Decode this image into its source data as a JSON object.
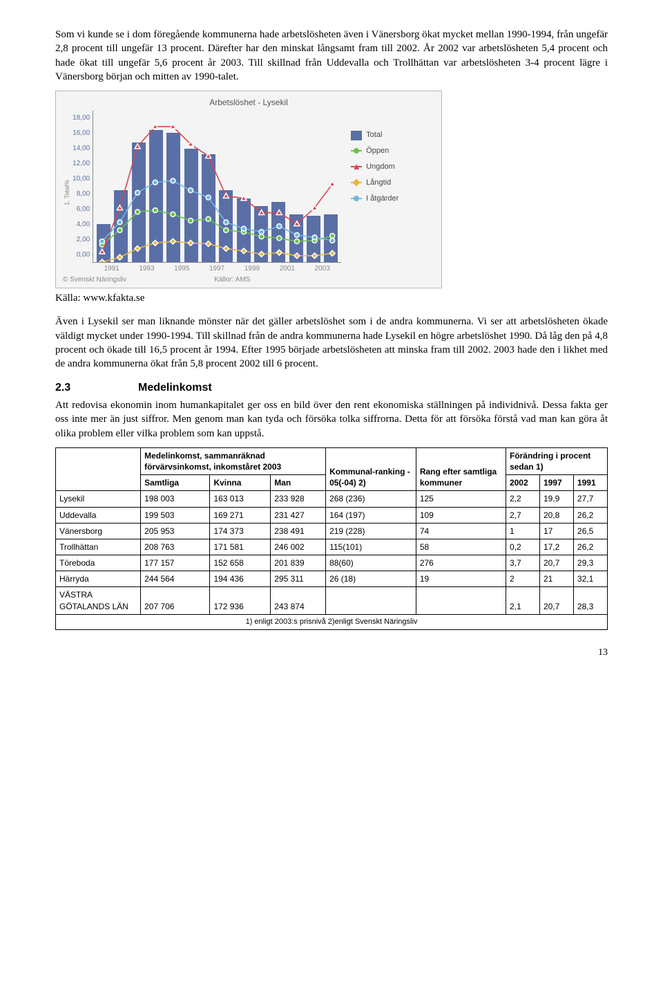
{
  "para1": "Som vi kunde se i dom föregående kommunerna hade arbetslösheten även i Vänersborg ökat mycket mellan 1990-1994, från ungefär 2,8 procent till ungefär 13 procent. Därefter har den minskat långsamt fram till 2002. År 2002 var arbetslösheten 5,4 procent och hade ökat till ungefär 5,6 procent år 2003. Till skillnad från Uddevalla och Trollhättan var arbetslösheten 3-4 procent lägre i Vänersborg början och mitten av 1990-talet.",
  "chart": {
    "title": "Arbetslöshet - Lysekil",
    "ylabel": "1. Total%",
    "yticks": [
      "18,00",
      "16,00",
      "14,00",
      "12,00",
      "10,00",
      "8,00",
      "6,00",
      "4,00",
      "2,00",
      "0,00"
    ],
    "ymax": 19,
    "years": [
      "1991",
      "1993",
      "1995",
      "1997",
      "1999",
      "2001",
      "2003"
    ],
    "bars": [
      4.8,
      9.0,
      15.0,
      16.5,
      16.2,
      14.2,
      13.5,
      9.0,
      8.0,
      7.0,
      7.5,
      6.0,
      5.8,
      6.0
    ],
    "series": {
      "oppen": {
        "color": "#6cc24a",
        "vals": [
          2.2,
          4.0,
          6.3,
          6.5,
          6.0,
          5.2,
          5.4,
          4.0,
          3.8,
          3.2,
          3.0,
          2.6,
          2.7,
          3.3
        ]
      },
      "ungdom": {
        "color": "#d64550",
        "vals": [
          1.3,
          6.8,
          14.5,
          17.0,
          17.0,
          14.8,
          13.3,
          8.3,
          8.0,
          6.2,
          6.2,
          4.8,
          6.8,
          9.8
        ]
      },
      "langtid": {
        "color": "#e8b93e",
        "vals": [
          0.0,
          0.6,
          1.7,
          2.4,
          2.6,
          2.4,
          2.3,
          1.7,
          1.4,
          1.0,
          1.2,
          0.8,
          0.8,
          1.1
        ]
      },
      "atg": {
        "color": "#6fb7e0",
        "vals": [
          2.6,
          5.0,
          8.7,
          10.0,
          10.2,
          9.0,
          8.1,
          5.0,
          4.2,
          3.8,
          4.5,
          3.4,
          3.1,
          2.7
        ]
      }
    },
    "legend": [
      {
        "type": "box",
        "label": "Total"
      },
      {
        "type": "line",
        "color": "#6cc24a",
        "label": "Öppen"
      },
      {
        "type": "line",
        "color": "#d64550",
        "label": "Ungdom",
        "shape": "tri"
      },
      {
        "type": "line",
        "color": "#e8b93e",
        "label": "Långtid",
        "shape": "dia"
      },
      {
        "type": "line",
        "color": "#6fb7e0",
        "label": "I åtgärder"
      }
    ],
    "footer_left": "© Svenskt Näringsliv",
    "footer_mid": "Källor: AMS"
  },
  "src_caption": "Källa: www.kfakta.se",
  "para2": "Även i Lysekil ser man liknande mönster när det gäller arbetslöshet som i de andra kommunerna. Vi ser att arbetslösheten ökade väldigt mycket under 1990-1994. Till skillnad från de andra kommunerna hade Lysekil en högre arbetslöshet 1990. Då låg den på 4,8 procent och ökade till 16,5 procent år 1994. Efter 1995 började arbetslösheten att minska fram till 2002. 2003 hade den i likhet med de andra kommunerna ökat från 5,8 procent 2002 till 6 procent.",
  "h2_num": "2.3",
  "h2_txt": "Medelinkomst",
  "para3": "Att redovisa ekonomin inom humankapitalet ger oss en bild över den rent ekonomiska ställningen på individnivå. Dessa fakta ger oss inte mer än just siffror. Men genom man kan tyda och försöka tolka siffrorna. Detta för att försöka förstå vad man kan göra åt olika problem eller vilka problem som kan uppstå.",
  "table": {
    "head1": [
      "",
      "Medelinkomst, sammanräknad förvärvsinkomst, inkomståret 2003",
      "Kommunal-ranking - 05(-04) 2)",
      "Rang efter samtliga kommuner",
      "Förändring i procent sedan 1)"
    ],
    "head2": [
      "",
      "Samtliga",
      "Kvinna",
      "Man",
      "",
      "",
      "2002",
      "1997",
      "1991"
    ],
    "rows": [
      [
        "Lysekil",
        "198 003",
        "163 013",
        "233 928",
        "268 (236)",
        "125",
        "2,2",
        "19,9",
        "27,7"
      ],
      [
        "Uddevalla",
        "199 503",
        "169 271",
        "231 427",
        "164 (197)",
        "109",
        "2,7",
        "20,8",
        "26,2"
      ],
      [
        "Vänersborg",
        "205 953",
        "174 373",
        "238 491",
        "219 (228)",
        "74",
        "1",
        "17",
        "26,5"
      ],
      [
        "Trollhättan",
        "208 763",
        "171 581",
        "246 002",
        "115(101)",
        "58",
        "0,2",
        "17,2",
        "26,2"
      ],
      [
        "Töreboda",
        "177 157",
        "152 658",
        "201 839",
        "88(60)",
        "276",
        "3,7",
        "20,7",
        "29,3"
      ],
      [
        "Härryda",
        "244 564",
        "194 436",
        "295 311",
        "26 (18)",
        "19",
        "2",
        "21",
        "32,1"
      ],
      [
        "VÄSTRA GÖTALANDS LÄN",
        "207 706",
        "172 936",
        "243 874",
        "",
        "",
        "2,1",
        "20,7",
        "28,3"
      ]
    ],
    "footnote": "1) enligt 2003:s prisnivå 2)enligt Svenskt Näringsliv"
  },
  "pagenum": "13"
}
